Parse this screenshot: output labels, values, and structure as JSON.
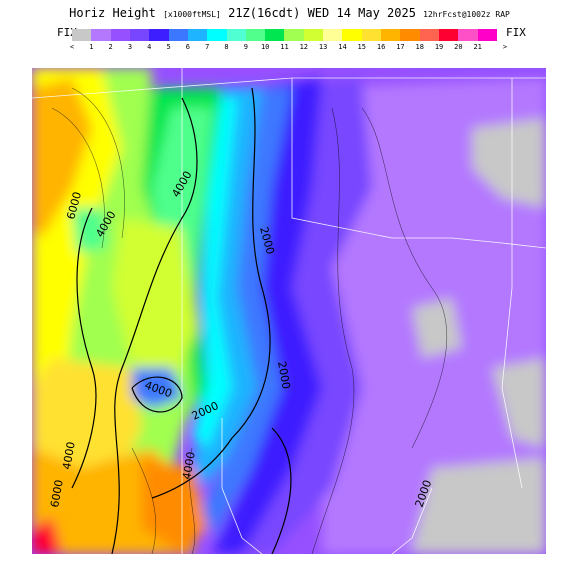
{
  "header": {
    "title_a": "Horiz Height",
    "title_b": "[x1000ftMSL]",
    "title_c": "21Z(16cdt) WED 14 May 2025",
    "title_d": "12hrFcst@1002z RAP"
  },
  "legend": {
    "fix_left": "FIX",
    "fix_right": "FIX",
    "under_arrow": "<",
    "over_arrow": ">",
    "colors": [
      "#c8c8c8",
      "#b478ff",
      "#9650ff",
      "#7846ff",
      "#3c1eff",
      "#3c78ff",
      "#1eb4ff",
      "#00ffff",
      "#50ffd2",
      "#50ff8c",
      "#00e650",
      "#a0ff50",
      "#d2ff32",
      "#ffff96",
      "#ffff00",
      "#ffe132",
      "#ffb400",
      "#ff8c00",
      "#ff6450",
      "#ff0032",
      "#ff50c8",
      "#ff00c8"
    ],
    "ticks": [
      "1",
      "2",
      "3",
      "4",
      "5",
      "6",
      "7",
      "8",
      "9",
      "10",
      "11",
      "12",
      "13",
      "14",
      "15",
      "16",
      "17",
      "18",
      "19",
      "20",
      "21"
    ]
  },
  "map": {
    "contour_labels": [
      "6000",
      "4000",
      "4000",
      "2000",
      "2000",
      "2000",
      "4000",
      "4000",
      "2000",
      "4000",
      "6000"
    ]
  }
}
